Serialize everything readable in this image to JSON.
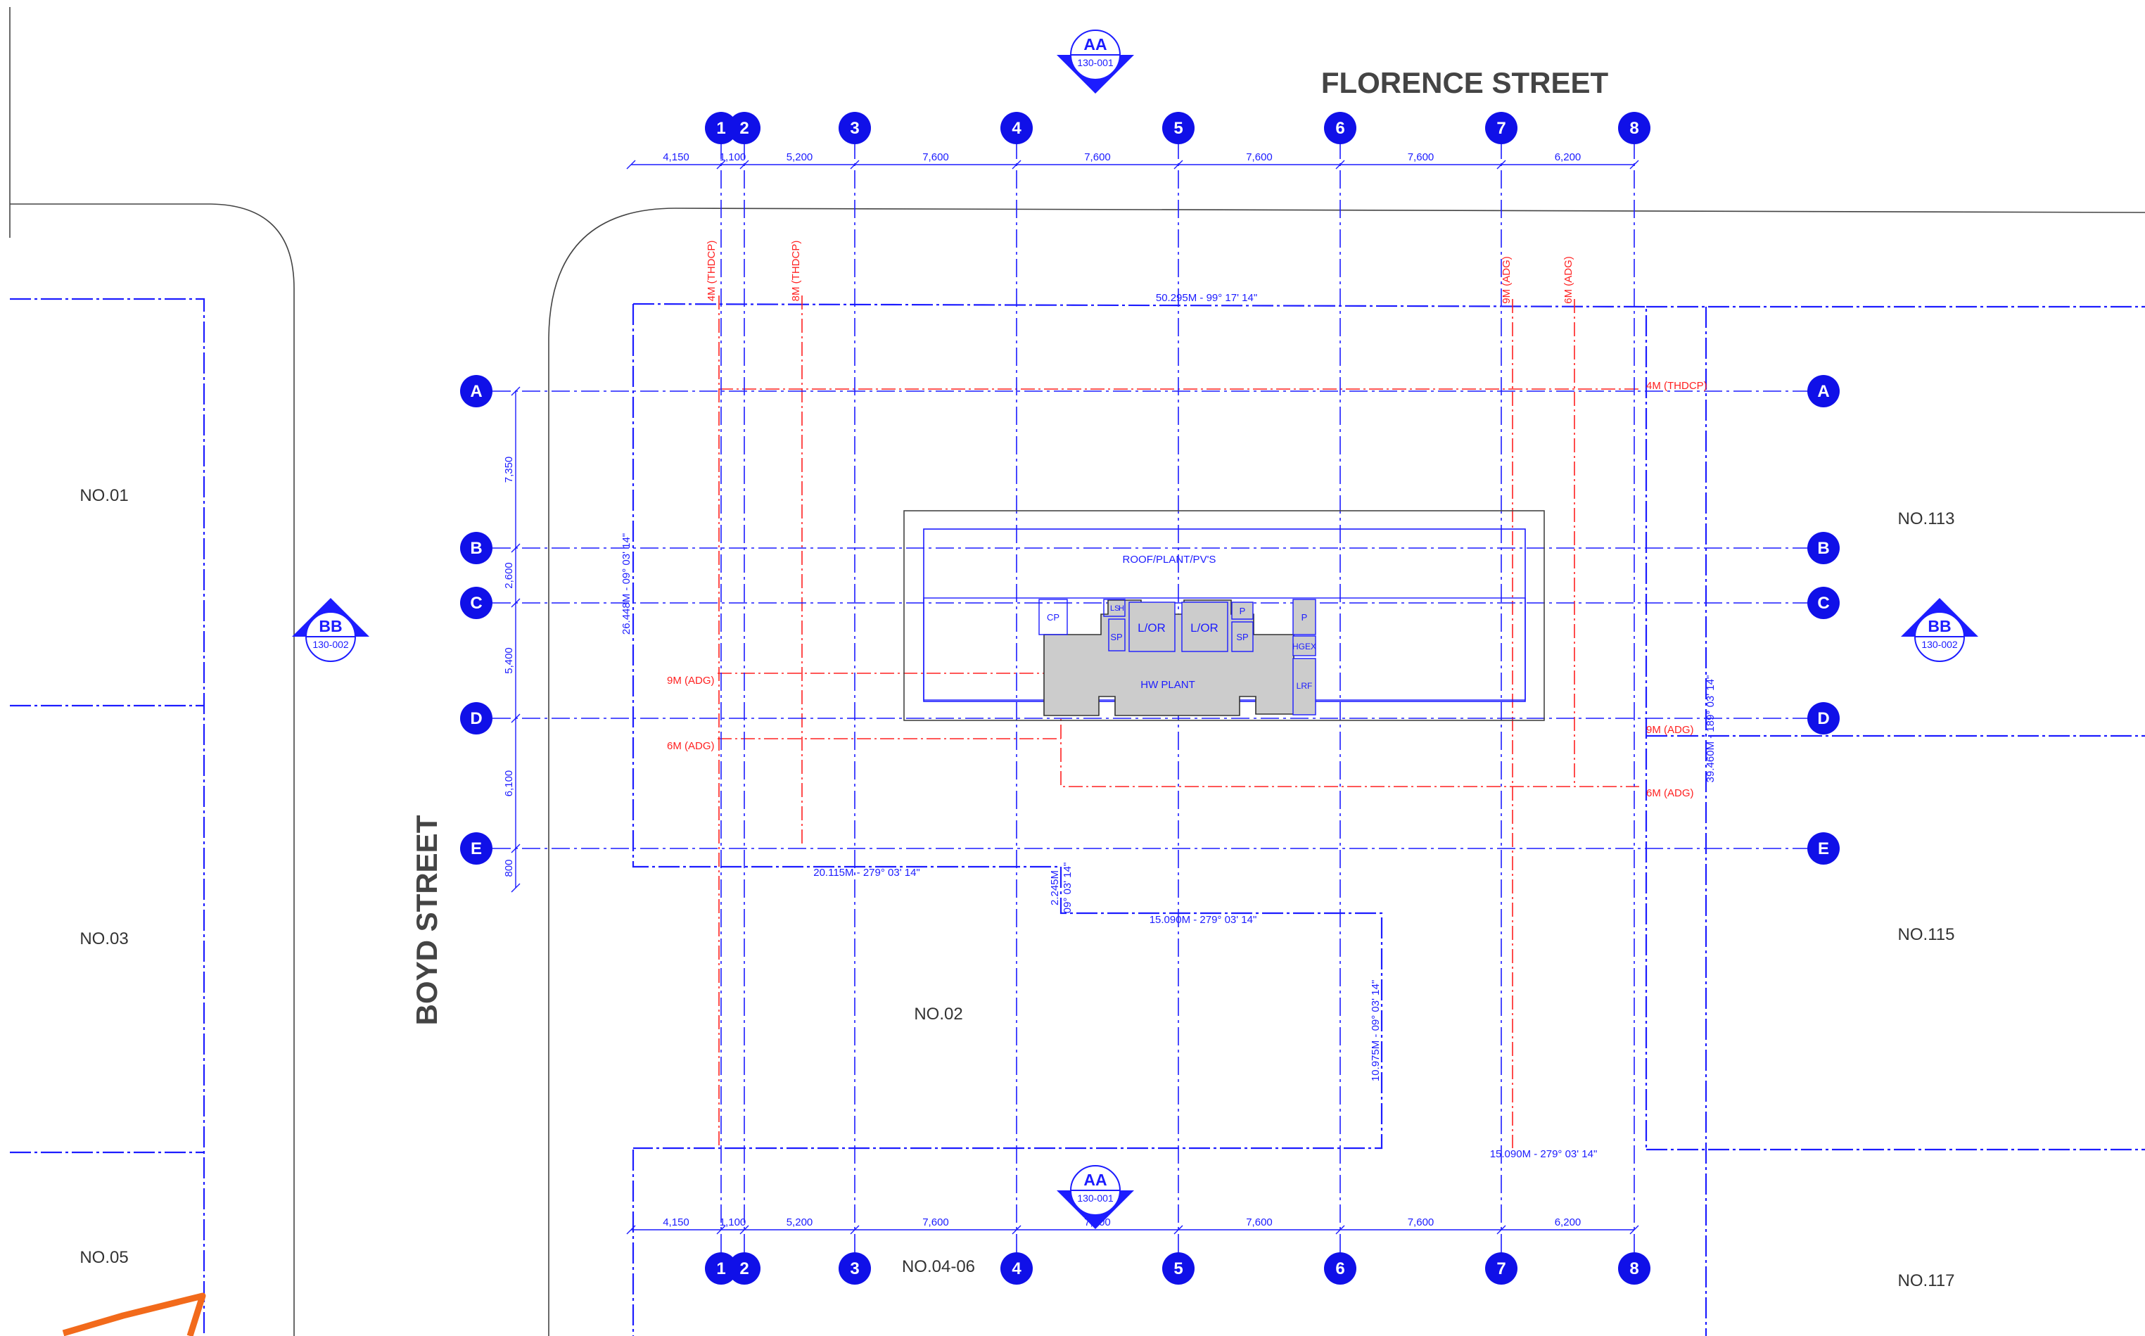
{
  "streets": {
    "north": "FLORENCE STREET",
    "west": "BOYD STREET"
  },
  "lots": {
    "no01": "NO.01",
    "no03": "NO.03",
    "no05": "NO.05",
    "no02": "NO.02",
    "no0406": "NO.04-06",
    "no113": "NO.113",
    "no115": "NO.115",
    "no117": "NO.117"
  },
  "section_markers": {
    "aa": {
      "label": "AA",
      "ref": "130-001"
    },
    "bb": {
      "label": "BB",
      "ref": "130-002"
    }
  },
  "grid": {
    "columns": [
      "1",
      "2",
      "3",
      "4",
      "5",
      "6",
      "7",
      "8"
    ],
    "rows": [
      "A",
      "B",
      "C",
      "D",
      "E"
    ]
  },
  "column_dims": [
    "4,150",
    "1,100",
    "5,200",
    "7,600",
    "7,600",
    "7,600",
    "7,600",
    "6,200"
  ],
  "row_dims": [
    "7,350",
    "2,600",
    "5,400",
    "6,100",
    "800"
  ],
  "boundaries": {
    "north": "50.295M - 99° 17' 14\"",
    "west": "26.448M - 09° 03' 14\"",
    "east": "39.460M - 189° 03' 14\"",
    "south_west": "20.115M - 279° 03' 14\"",
    "jog_short": "2.245M",
    "jog_short_bearing": "09° 03' 14\"",
    "mid": "15.090M - 279° 03' 14\"",
    "mid_vertical": "10.975M - 09° 03' 14\"",
    "south": "15.090M - 279° 03' 14\""
  },
  "setbacks": {
    "thdcp_4m": "4M (THDCP)",
    "thdcp_8m": "8M (THDCP)",
    "adg_9m": "9M (ADG)",
    "adg_6m": "6M (ADG)"
  },
  "rooms": {
    "roof": "ROOF/PLANT/PV'S",
    "hw_plant": "HW PLANT",
    "lor_1": "L/OR",
    "lor_2": "L/OR",
    "cp": "CP",
    "sp_1": "SP",
    "sp_2": "SP",
    "p_1": "P",
    "p_2": "P",
    "hgex": "HGEX",
    "lrf": "LRF",
    "ls_a": "LS",
    "ls_b": "H"
  }
}
